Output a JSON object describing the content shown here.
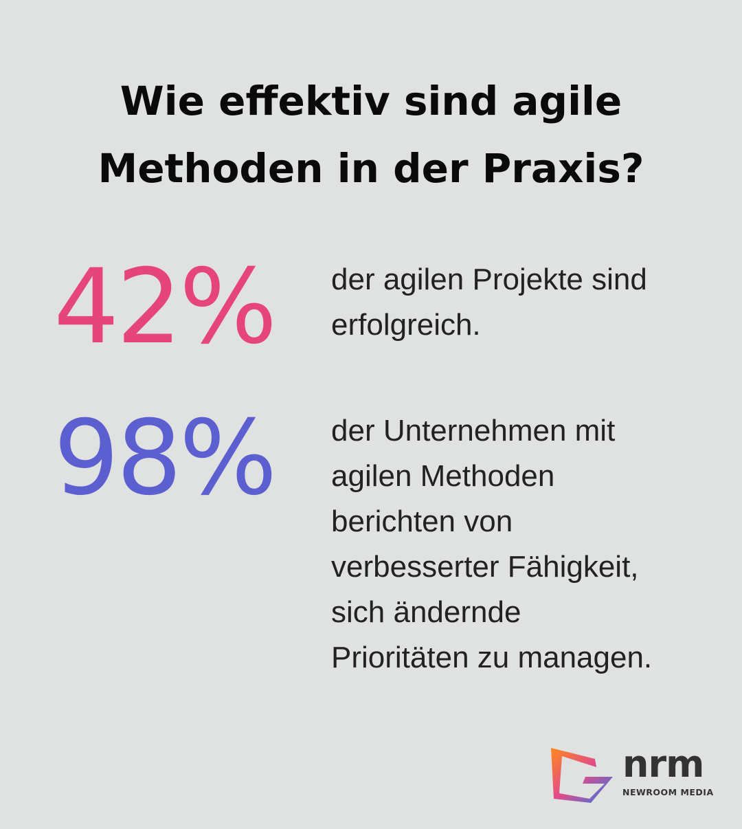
{
  "header": {
    "title_lines": [
      "Wie effektiv sind agile",
      "Methoden in der Praxis?"
    ]
  },
  "stats": [
    {
      "value": "42%",
      "color": "#e5457a",
      "description_lines": [
        "der agilen Projekte sind",
        "erfolgreich."
      ]
    },
    {
      "value": "98%",
      "color": "#5c5fcf",
      "description_lines": [
        "der Unternehmen mit",
        "agilen Methoden",
        "berichten von",
        "verbesserter Fähigkeit,",
        "sich ändernde",
        "Prioritäten zu managen."
      ]
    }
  ],
  "logo": {
    "name": "nrm",
    "tagline": "NEWROOM MEDIA"
  }
}
